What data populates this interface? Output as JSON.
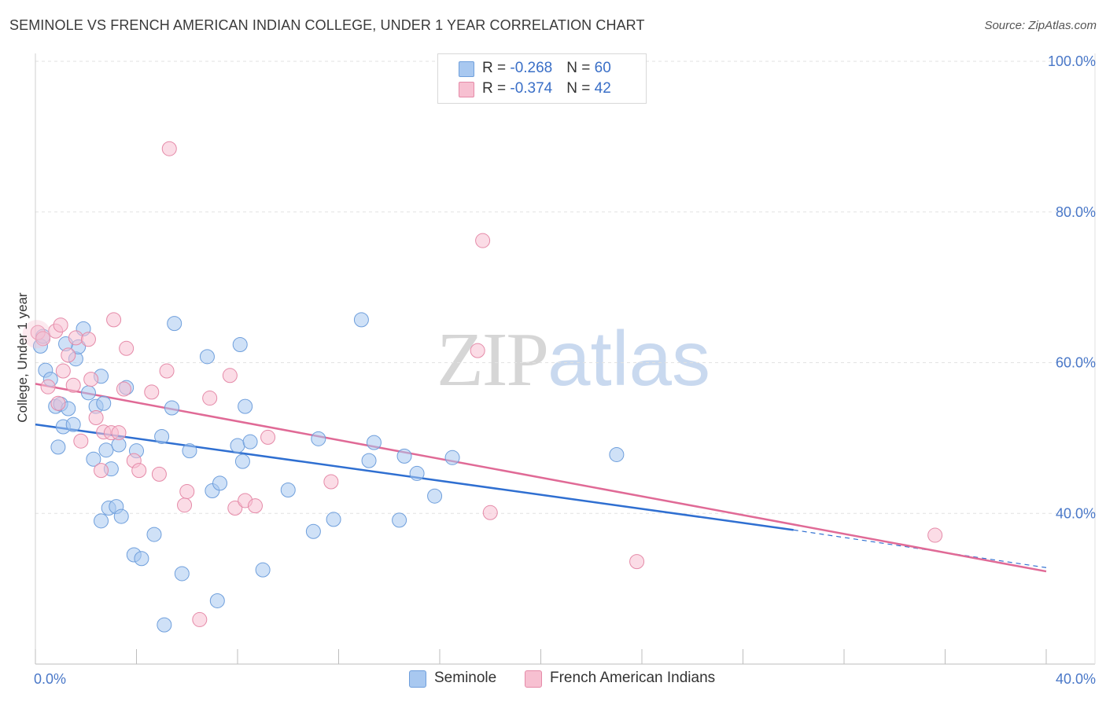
{
  "title": "SEMINOLE VS FRENCH AMERICAN INDIAN COLLEGE, UNDER 1 YEAR CORRELATION CHART",
  "source": "Source: ZipAtlas.com",
  "watermark": {
    "zip": "ZIP",
    "atlas": "atlas"
  },
  "legend": {
    "rows": [
      {
        "r_label": "R = ",
        "r_value": "-0.268",
        "n_label": "N = ",
        "n_value": "60",
        "color": "#a8c8f0",
        "border": "#6f9fdc"
      },
      {
        "r_label": "R = ",
        "r_value": "-0.374",
        "n_label": "N = ",
        "n_value": "42",
        "color": "#f7c0d1",
        "border": "#e58aa8"
      }
    ]
  },
  "bottom_legend": [
    "Seminole",
    "French American Indians"
  ],
  "chart_data": {
    "type": "scatter",
    "title": "SEMINOLE VS FRENCH AMERICAN INDIAN COLLEGE, UNDER 1 YEAR CORRELATION CHART",
    "xlabel": "",
    "ylabel": "College, Under 1 year",
    "xlim": [
      0,
      40
    ],
    "ylim": [
      20,
      103
    ],
    "x_tick_labels": [
      "0.0%",
      "40.0%"
    ],
    "y_ticks": [
      40,
      60,
      80,
      100
    ],
    "y_tick_labels": [
      "40.0%",
      "60.0%",
      "80.0%",
      "100.0%"
    ],
    "grid": true,
    "series": [
      {
        "name": "Seminole",
        "color": "#a8c8f0",
        "stroke": "#6f9fdc",
        "line_color": "#2f6fd1",
        "trend": {
          "x": [
            0,
            30
          ],
          "y": [
            51.8,
            37.8
          ],
          "dashed_to": [
            40,
            32.8
          ]
        },
        "points": [
          [
            0.2,
            62.2
          ],
          [
            0.4,
            59.0
          ],
          [
            0.6,
            57.8
          ],
          [
            0.8,
            54.2
          ],
          [
            0.9,
            48.8
          ],
          [
            1.0,
            54.5
          ],
          [
            1.1,
            51.5
          ],
          [
            1.3,
            53.9
          ],
          [
            1.5,
            51.8
          ],
          [
            1.6,
            60.5
          ],
          [
            1.7,
            62.1
          ],
          [
            1.9,
            64.5
          ],
          [
            2.1,
            56.0
          ],
          [
            2.3,
            47.2
          ],
          [
            2.4,
            54.2
          ],
          [
            2.6,
            58.2
          ],
          [
            2.6,
            39.0
          ],
          [
            2.7,
            54.6
          ],
          [
            2.8,
            48.4
          ],
          [
            2.9,
            40.7
          ],
          [
            3.0,
            45.9
          ],
          [
            3.2,
            40.9
          ],
          [
            3.3,
            49.1
          ],
          [
            3.4,
            39.6
          ],
          [
            3.6,
            56.7
          ],
          [
            3.9,
            34.5
          ],
          [
            4.0,
            48.3
          ],
          [
            4.2,
            34.0
          ],
          [
            4.7,
            37.2
          ],
          [
            5.0,
            50.2
          ],
          [
            5.1,
            25.2
          ],
          [
            5.4,
            54.0
          ],
          [
            5.5,
            65.2
          ],
          [
            5.8,
            32.0
          ],
          [
            6.1,
            48.3
          ],
          [
            6.8,
            60.8
          ],
          [
            7.0,
            43.0
          ],
          [
            7.2,
            28.4
          ],
          [
            7.3,
            44.0
          ],
          [
            8.1,
            62.4
          ],
          [
            8.0,
            49.0
          ],
          [
            8.2,
            46.9
          ],
          [
            8.5,
            49.5
          ],
          [
            8.3,
            54.2
          ],
          [
            9.0,
            32.5
          ],
          [
            10.0,
            43.1
          ],
          [
            11.0,
            37.6
          ],
          [
            11.2,
            49.9
          ],
          [
            11.8,
            39.2
          ],
          [
            12.9,
            65.7
          ],
          [
            13.2,
            47.0
          ],
          [
            13.4,
            49.4
          ],
          [
            14.4,
            39.1
          ],
          [
            14.6,
            47.6
          ],
          [
            15.1,
            45.3
          ],
          [
            15.8,
            42.3
          ],
          [
            16.5,
            47.4
          ],
          [
            23.0,
            47.8
          ],
          [
            0.3,
            63.5
          ],
          [
            1.2,
            62.5
          ]
        ]
      },
      {
        "name": "French American Indians",
        "color": "#f7c0d1",
        "stroke": "#e58aa8",
        "line_color": "#e06a96",
        "trend": {
          "x": [
            0,
            40
          ],
          "y": [
            57.2,
            32.3
          ]
        },
        "points": [
          [
            0.1,
            64.0
          ],
          [
            0.3,
            63.2
          ],
          [
            0.5,
            56.8
          ],
          [
            0.8,
            64.2
          ],
          [
            0.9,
            54.6
          ],
          [
            1.0,
            65.0
          ],
          [
            1.1,
            58.9
          ],
          [
            1.3,
            61.0
          ],
          [
            1.5,
            57.0
          ],
          [
            1.6,
            63.3
          ],
          [
            1.8,
            49.6
          ],
          [
            2.1,
            63.1
          ],
          [
            2.2,
            57.8
          ],
          [
            2.4,
            52.7
          ],
          [
            2.6,
            45.7
          ],
          [
            2.7,
            50.8
          ],
          [
            3.0,
            50.7
          ],
          [
            3.1,
            65.7
          ],
          [
            3.3,
            50.7
          ],
          [
            3.5,
            56.5
          ],
          [
            3.6,
            61.9
          ],
          [
            3.9,
            47.0
          ],
          [
            4.1,
            45.7
          ],
          [
            4.6,
            56.1
          ],
          [
            4.9,
            45.2
          ],
          [
            5.2,
            58.9
          ],
          [
            5.3,
            88.4
          ],
          [
            5.9,
            41.1
          ],
          [
            6.0,
            42.9
          ],
          [
            6.9,
            55.3
          ],
          [
            7.7,
            58.3
          ],
          [
            7.9,
            40.7
          ],
          [
            8.3,
            41.7
          ],
          [
            8.7,
            41.0
          ],
          [
            9.2,
            50.1
          ],
          [
            11.7,
            44.2
          ],
          [
            17.5,
            61.6
          ],
          [
            17.7,
            76.2
          ],
          [
            18.0,
            40.1
          ],
          [
            23.8,
            33.6
          ],
          [
            35.6,
            37.1
          ],
          [
            6.5,
            25.9
          ]
        ]
      }
    ]
  }
}
